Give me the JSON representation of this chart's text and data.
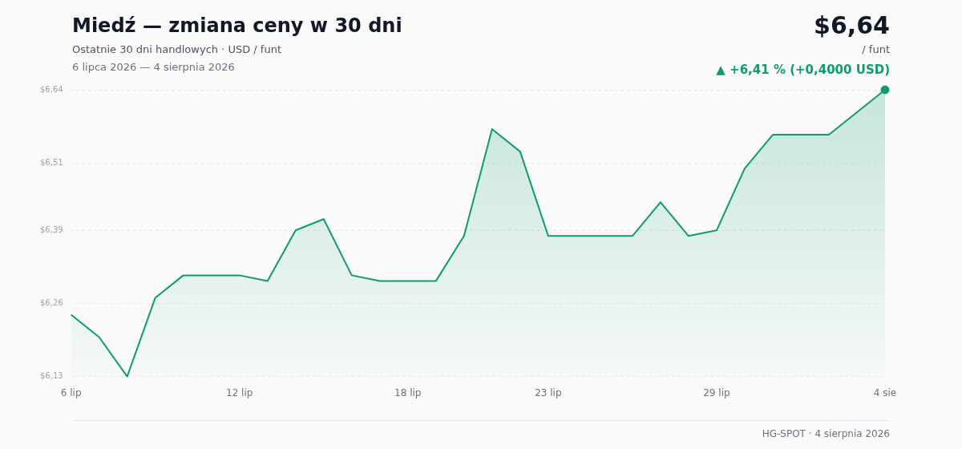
{
  "chart_data": {
    "type": "area",
    "title": "Miedź — zmiana ceny w 30 dni",
    "subtitle": "Ostatnie 30 dni handlowych · USD / funt",
    "annotations": [
      "6 lipca 2026 — 4 sierpnia 2026",
      "$6,64",
      "/ funt",
      "▲ +6,41 % (+0,4000 USD)",
      "HG-SPOT · 4 sierpnia 2026"
    ],
    "categories": [
      "6 lip",
      null,
      null,
      null,
      null,
      null,
      "12 lip",
      null,
      null,
      null,
      null,
      null,
      "18 lip",
      null,
      null,
      null,
      null,
      "23 lip",
      null,
      null,
      null,
      null,
      null,
      "29 lip",
      null,
      null,
      null,
      null,
      null,
      "4 sie"
    ],
    "series": [
      {
        "type": "area",
        "color": "#0f9b6c",
        "marker": "none",
        "values": [
          6.24,
          6.2,
          6.13,
          6.27,
          6.31,
          6.31,
          6.31,
          6.3,
          6.39,
          6.41,
          6.31,
          6.3,
          6.3,
          6.3,
          6.38,
          6.57,
          6.53,
          6.38,
          6.38,
          6.38,
          6.38,
          6.44,
          6.38,
          6.39,
          6.5,
          6.56,
          6.56,
          6.56,
          6.6,
          6.64
        ]
      },
      {
        "type": "scatter",
        "color": "#0f9b6c",
        "marker": "circle",
        "x": [
          "4 sie"
        ],
        "values": [
          6.64
        ]
      }
    ],
    "ylim": [
      6.13,
      6.64
    ],
    "yticks": [
      {
        "value": 6.13,
        "label": "$6,13"
      },
      {
        "value": 6.26,
        "label": "$6,26"
      },
      {
        "value": 6.39,
        "label": "$6,39"
      },
      {
        "value": 6.51,
        "label": "$6,51"
      },
      {
        "value": 6.64,
        "label": "$6,64"
      }
    ],
    "grid": "y",
    "legend": false
  }
}
